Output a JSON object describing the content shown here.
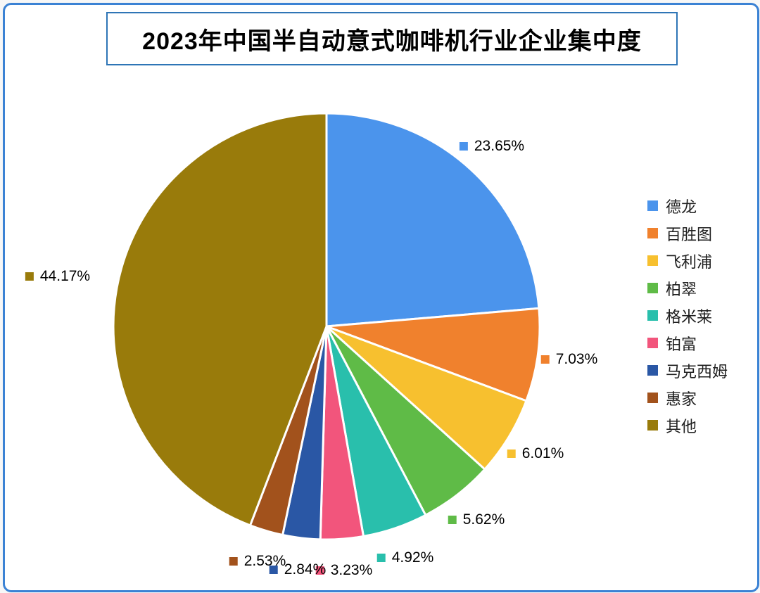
{
  "chart_data": {
    "type": "pie",
    "title": "2023年中国半自动意式咖啡机行业企业集中度",
    "unit": "%",
    "direction": "clockwise",
    "start_angle_deg": 0,
    "legend_position": "right",
    "gridlines": false,
    "slice_separator_color": "#ffffff",
    "frame_border_color": "#3b82d4",
    "title_border_color": "#2e75b6",
    "slices": [
      {
        "label": "德龙",
        "value": 23.65,
        "display": "23.65%",
        "color": "#4b94ec"
      },
      {
        "label": "百胜图",
        "value": 7.03,
        "display": "7.03%",
        "color": "#f0812d"
      },
      {
        "label": "飞利浦",
        "value": 6.01,
        "display": "6.01%",
        "color": "#f7c02f"
      },
      {
        "label": "柏翠",
        "value": 5.62,
        "display": "5.62%",
        "color": "#5fbb47"
      },
      {
        "label": "格米莱",
        "value": 4.92,
        "display": "4.92%",
        "color": "#29bfac"
      },
      {
        "label": "铂富",
        "value": 3.23,
        "display": "3.23%",
        "color": "#f2557c"
      },
      {
        "label": "马克西姆",
        "value": 2.84,
        "display": "2.84%",
        "color": "#2a57a5"
      },
      {
        "label": "惠家",
        "value": 2.53,
        "display": "2.53%",
        "color": "#a2521c"
      },
      {
        "label": "其他",
        "value": 44.17,
        "display": "44.17%",
        "color": "#997b0b"
      }
    ]
  }
}
